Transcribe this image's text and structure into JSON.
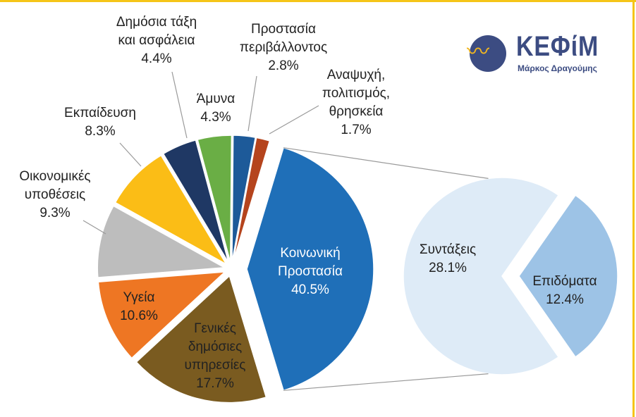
{
  "logo": {
    "name": "ΚΕΦίΜ",
    "subtitle": "Μάρκος Δραγούμης"
  },
  "chart_data": {
    "type": "pie",
    "subtype": "pie-of-pie",
    "title": "",
    "slices": [
      {
        "label_lines": [
          "Κοινωνική",
          "Προστασία"
        ],
        "value": 40.5,
        "value_label": "40.5%",
        "color": "#1f6fb8",
        "split": true
      },
      {
        "label_lines": [
          "Γενικές",
          "δημόσιες",
          "υπηρεσίες"
        ],
        "value": 17.7,
        "value_label": "17.7%",
        "color": "#7a5b20"
      },
      {
        "label_lines": [
          "Υγεία"
        ],
        "value": 10.6,
        "value_label": "10.6%",
        "color": "#ee7623"
      },
      {
        "label_lines": [
          "Οικονομικές",
          "υποθέσεις"
        ],
        "value": 9.3,
        "value_label": "9.3%",
        "color": "#bdbdbd"
      },
      {
        "label_lines": [
          "Εκπαίδευση"
        ],
        "value": 8.3,
        "value_label": "8.3%",
        "color": "#fbbd16"
      },
      {
        "label_lines": [
          "Δημόσια τάξη",
          "και ασφάλεια"
        ],
        "value": 4.4,
        "value_label": "4.4%",
        "color": "#1f3864"
      },
      {
        "label_lines": [
          "Άμυνα"
        ],
        "value": 4.3,
        "value_label": "4.3%",
        "color": "#6aae45"
      },
      {
        "label_lines": [
          "Προστασία",
          "περιβάλλοντος"
        ],
        "value": 2.8,
        "value_label": "2.8%",
        "color": "#1d5a99"
      },
      {
        "label_lines": [
          "Αναψυχή,",
          "πολιτισμός,",
          "θρησκεία"
        ],
        "value": 1.7,
        "value_label": "1.7%",
        "color": "#b5441d"
      }
    ],
    "secondary": [
      {
        "label_lines": [
          "Συντάξεις"
        ],
        "value": 28.1,
        "value_label": "28.1%",
        "color": "#deebf7"
      },
      {
        "label_lines": [
          "Επιδόματα"
        ],
        "value": 12.4,
        "value_label": "12.4%",
        "color": "#9dc3e6"
      }
    ]
  }
}
